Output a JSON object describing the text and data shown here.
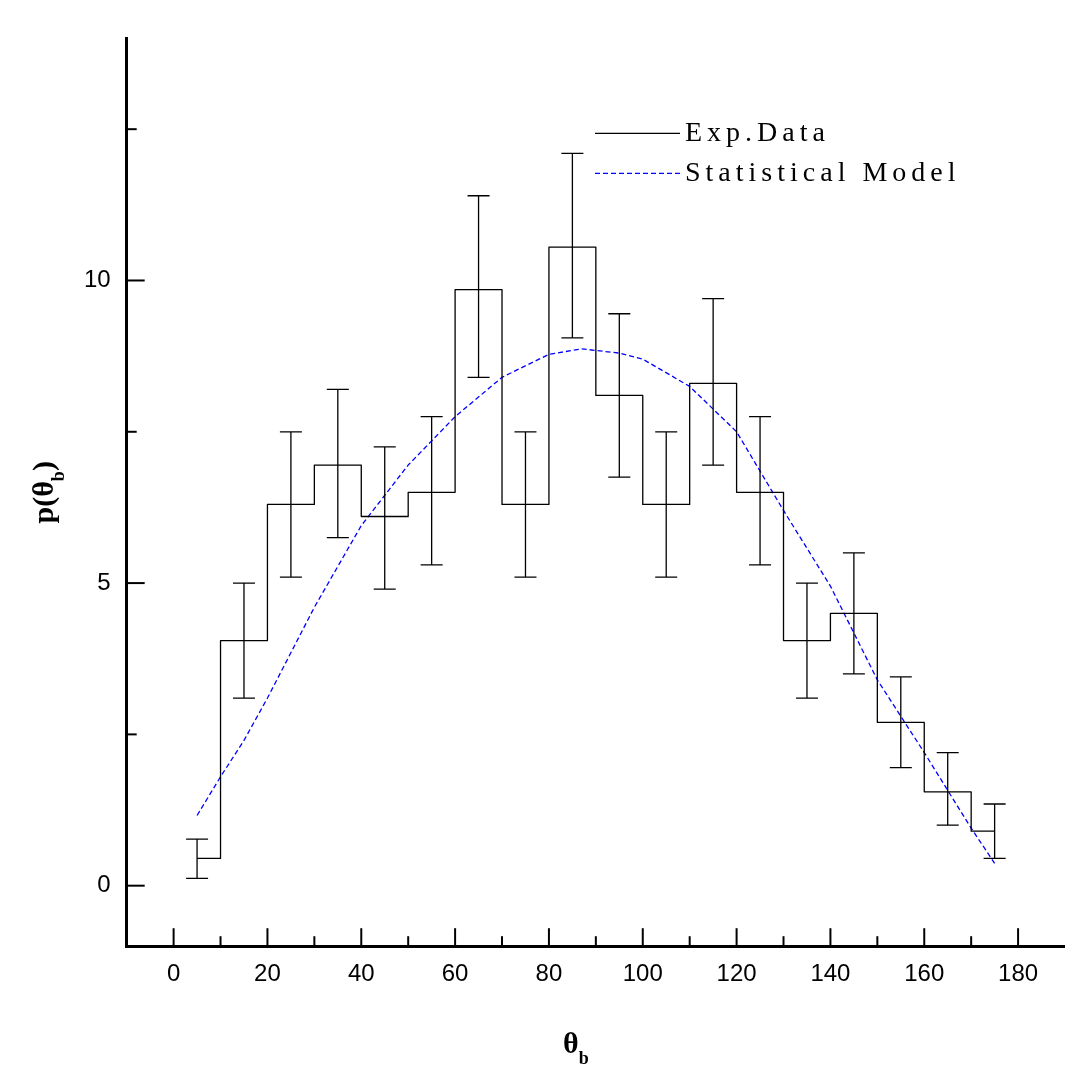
{
  "chart_data": {
    "type": "step",
    "xlabel": "θ$_{b}$",
    "ylabel": "p(θ$_{b}$)",
    "xlim": [
      -10,
      190
    ],
    "ylim": [
      -1,
      14
    ],
    "xticks": [
      0,
      {
        "value": 10,
        "label": null
      },
      20,
      {
        "value": 30,
        "label": null
      },
      40,
      {
        "value": 50,
        "label": null
      },
      60,
      {
        "value": 70,
        "label": null
      },
      80,
      {
        "value": 90,
        "label": null
      },
      100,
      {
        "value": 110,
        "label": null
      },
      120,
      {
        "value": 130,
        "label": null
      },
      140,
      {
        "value": 150,
        "label": null
      },
      160,
      {
        "value": 170,
        "label": null
      },
      180
    ],
    "yticks": [
      0,
      {
        "value": 2.5,
        "label": null
      },
      5,
      {
        "value": 7.5,
        "label": null
      },
      10,
      {
        "value": 12.5,
        "label": null
      }
    ],
    "grid": false,
    "legend": "top right",
    "series": [
      {
        "name": "Exp.Data",
        "color": "#000000",
        "line_style": "solid",
        "x": [
          5,
          15,
          25,
          35,
          45,
          55,
          65,
          75,
          85,
          95,
          105,
          115,
          125,
          135,
          145,
          155,
          165,
          175
        ],
        "values": [
          0.45,
          4.05,
          6.3,
          6.95,
          6.1,
          6.5,
          9.85,
          6.3,
          10.55,
          8.1,
          6.3,
          8.3,
          6.5,
          4.05,
          4.5,
          2.7,
          1.55,
          0.9
        ],
        "errors": [
          [
            0.12,
            0.77
          ],
          [
            3.1,
            5.0
          ],
          [
            5.1,
            7.5
          ],
          [
            5.75,
            8.2
          ],
          [
            4.9,
            7.25
          ],
          [
            5.3,
            7.75
          ],
          [
            8.4,
            11.4
          ],
          [
            5.1,
            7.5
          ],
          [
            9.05,
            12.1
          ],
          [
            6.75,
            9.45
          ],
          [
            5.1,
            7.5
          ],
          [
            6.95,
            9.7
          ],
          [
            5.3,
            7.75
          ],
          [
            3.1,
            5.0
          ],
          [
            3.5,
            5.5
          ],
          [
            1.95,
            3.45
          ],
          [
            1.0,
            2.2
          ],
          [
            0.45,
            1.35
          ]
        ]
      },
      {
        "name": "Statistical Model",
        "type": "line",
        "color": "#0000ff",
        "line_style": "dashed",
        "x": [
          5,
          10,
          15,
          20,
          30,
          40,
          50,
          60,
          70,
          80,
          87,
          95,
          100,
          110,
          120,
          130,
          140,
          150,
          160,
          170,
          175
        ],
        "values": [
          1.16,
          1.8,
          2.4,
          3.1,
          4.6,
          5.95,
          6.95,
          7.75,
          8.4,
          8.78,
          8.87,
          8.8,
          8.7,
          8.25,
          7.5,
          6.2,
          4.95,
          3.4,
          2.2,
          0.95,
          0.37
        ]
      }
    ]
  }
}
